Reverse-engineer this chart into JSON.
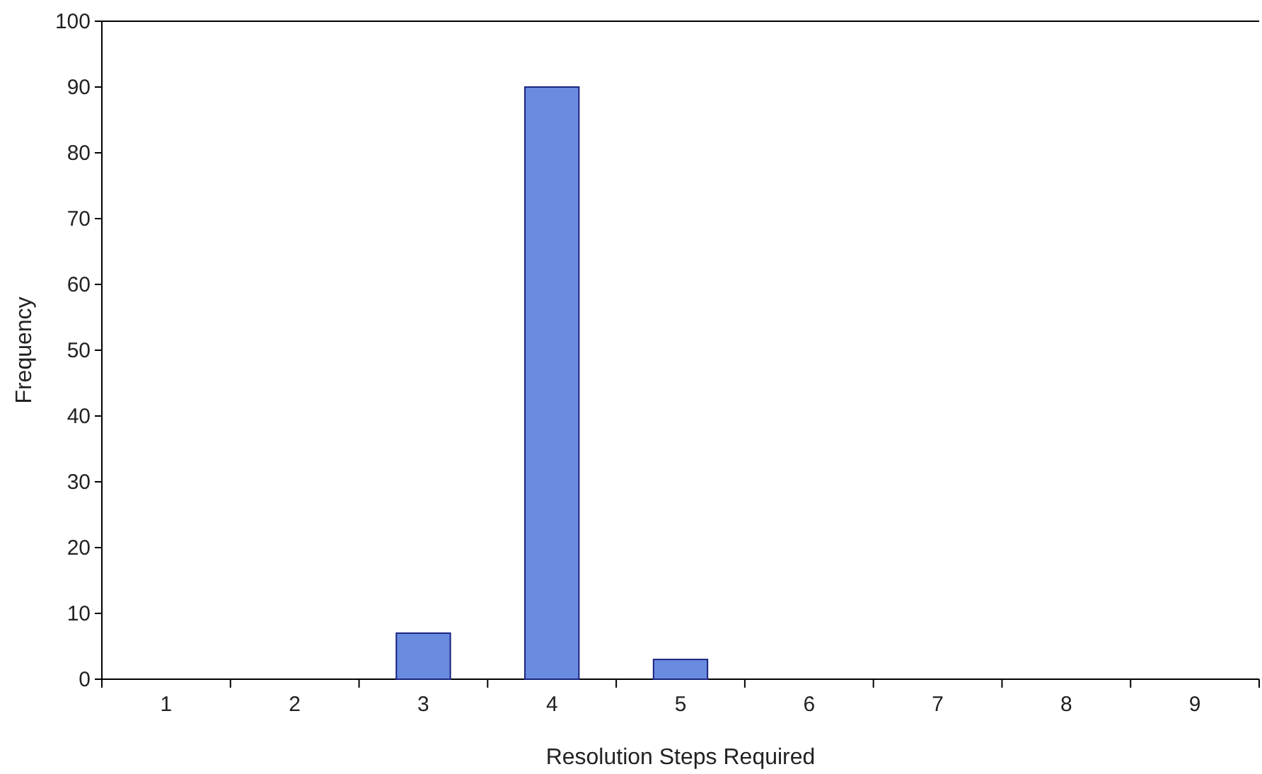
{
  "chart_data": {
    "type": "bar",
    "xlabel": "Resolution Steps Required",
    "ylabel": "Frequency",
    "categories": [
      "1",
      "2",
      "3",
      "4",
      "5",
      "6",
      "7",
      "8",
      "9"
    ],
    "values": [
      0,
      0,
      7,
      90,
      3,
      0,
      0,
      0,
      0
    ],
    "color": "#6a8ce0",
    "ylim": [
      0,
      100
    ],
    "yticks": [
      0,
      10,
      20,
      30,
      40,
      50,
      60,
      70,
      80,
      90,
      100
    ],
    "grid": false
  }
}
